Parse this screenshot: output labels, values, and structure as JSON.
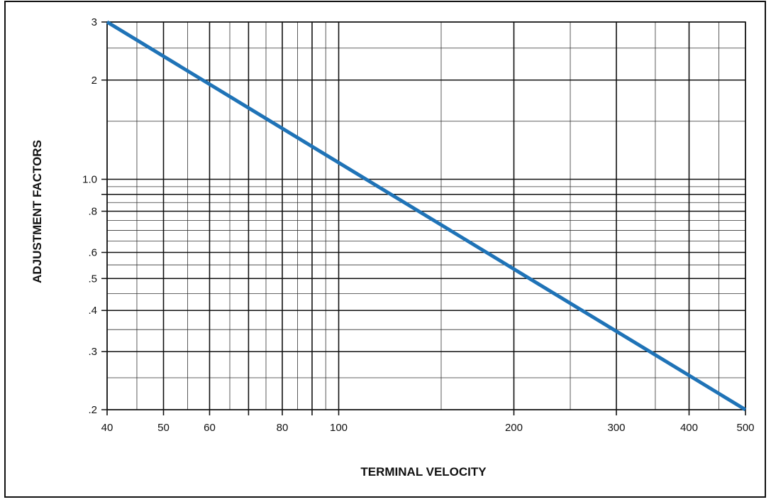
{
  "chart_data": {
    "type": "line",
    "xlabel": "TERMINAL VELOCITY",
    "ylabel": "ADJUSTMENT FACTORS",
    "x_scale": "log",
    "y_scale": "log",
    "xlim": [
      40,
      500
    ],
    "ylim": [
      0.2,
      3
    ],
    "x_tick_labels": [
      {
        "value": 40,
        "label": "40"
      },
      {
        "value": 50,
        "label": "50"
      },
      {
        "value": 60,
        "label": "60"
      },
      {
        "value": 80,
        "label": "80"
      },
      {
        "value": 100,
        "label": "100"
      },
      {
        "value": 200,
        "label": "200"
      },
      {
        "value": 300,
        "label": "300"
      },
      {
        "value": 400,
        "label": "400"
      },
      {
        "value": 500,
        "label": "500"
      }
    ],
    "y_tick_labels": [
      {
        "value": 0.2,
        "label": ".2"
      },
      {
        "value": 0.3,
        "label": ".3"
      },
      {
        "value": 0.4,
        "label": ".4"
      },
      {
        "value": 0.5,
        "label": ".5"
      },
      {
        "value": 0.6,
        "label": ".6"
      },
      {
        "value": 0.8,
        "label": ".8"
      },
      {
        "value": 1.0,
        "label": "1.0"
      },
      {
        "value": 2,
        "label": "2"
      },
      {
        "value": 3,
        "label": "3"
      }
    ],
    "x_major_gridlines": [
      40,
      50,
      60,
      70,
      80,
      90,
      100,
      200,
      300,
      400,
      500
    ],
    "x_minor_gridlines": [
      45,
      55,
      65,
      75,
      85,
      95,
      150,
      250,
      350,
      450
    ],
    "y_major_gridlines": [
      0.2,
      0.3,
      0.4,
      0.5,
      0.6,
      0.8,
      0.9,
      1.0,
      2,
      3
    ],
    "y_minor_gridlines": [
      0.25,
      0.35,
      0.45,
      0.55,
      0.65,
      0.7,
      0.75,
      0.85,
      0.95,
      1.5,
      2.5
    ],
    "grid": true,
    "series": [
      {
        "color": "#1f73b7",
        "x": [
          40,
          500
        ],
        "y": [
          3,
          0.2
        ]
      }
    ]
  }
}
